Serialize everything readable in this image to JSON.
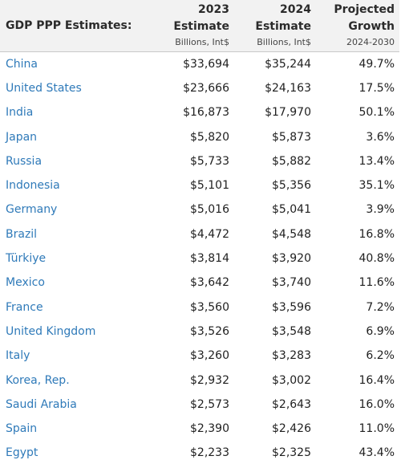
{
  "header": {
    "title": "GDP PPP Estimates:",
    "col_2023_line1": "2023",
    "col_2023_line2": "Estimate",
    "col_2023_unit": "Billions, Int$",
    "col_2024_line1": "2024",
    "col_2024_line2": "Estimate",
    "col_2024_unit": "Billions, Int$",
    "col_growth_line1": "Projected",
    "col_growth_line2": "Growth",
    "col_growth_unit": "2024-2030"
  },
  "rows": [
    {
      "country": "China",
      "est2023": "$33,694",
      "est2024": "$35,244",
      "growth": "49.7%"
    },
    {
      "country": "United States",
      "est2023": "$23,666",
      "est2024": "$24,163",
      "growth": "17.5%"
    },
    {
      "country": "India",
      "est2023": "$16,873",
      "est2024": "$17,970",
      "growth": "50.1%"
    },
    {
      "country": "Japan",
      "est2023": "$5,820",
      "est2024": "$5,873",
      "growth": "3.6%"
    },
    {
      "country": "Russia",
      "est2023": "$5,733",
      "est2024": "$5,882",
      "growth": "13.4%"
    },
    {
      "country": "Indonesia",
      "est2023": "$5,101",
      "est2024": "$5,356",
      "growth": "35.1%"
    },
    {
      "country": "Germany",
      "est2023": "$5,016",
      "est2024": "$5,041",
      "growth": "3.9%"
    },
    {
      "country": "Brazil",
      "est2023": "$4,472",
      "est2024": "$4,548",
      "growth": "16.8%"
    },
    {
      "country": "Türkiye",
      "est2023": "$3,814",
      "est2024": "$3,920",
      "growth": "40.8%"
    },
    {
      "country": "Mexico",
      "est2023": "$3,642",
      "est2024": "$3,740",
      "growth": "11.6%"
    },
    {
      "country": "France",
      "est2023": "$3,560",
      "est2024": "$3,596",
      "growth": "7.2%"
    },
    {
      "country": "United Kingdom",
      "est2023": "$3,526",
      "est2024": "$3,548",
      "growth": "6.9%"
    },
    {
      "country": "Italy",
      "est2023": "$3,260",
      "est2024": "$3,283",
      "growth": "6.2%"
    },
    {
      "country": "Korea, Rep.",
      "est2023": "$2,932",
      "est2024": "$3,002",
      "growth": "16.4%"
    },
    {
      "country": "Saudi Arabia",
      "est2023": "$2,573",
      "est2024": "$2,643",
      "growth": "16.0%"
    },
    {
      "country": "Spain",
      "est2023": "$2,390",
      "est2024": "$2,426",
      "growth": "11.0%"
    },
    {
      "country": "Egypt",
      "est2023": "$2,233",
      "est2024": "$2,325",
      "growth": "43.4%"
    }
  ],
  "colors": {
    "link": "#2f7ab9",
    "header_bg": "#f2f2f2",
    "text": "#1f1f1f"
  }
}
